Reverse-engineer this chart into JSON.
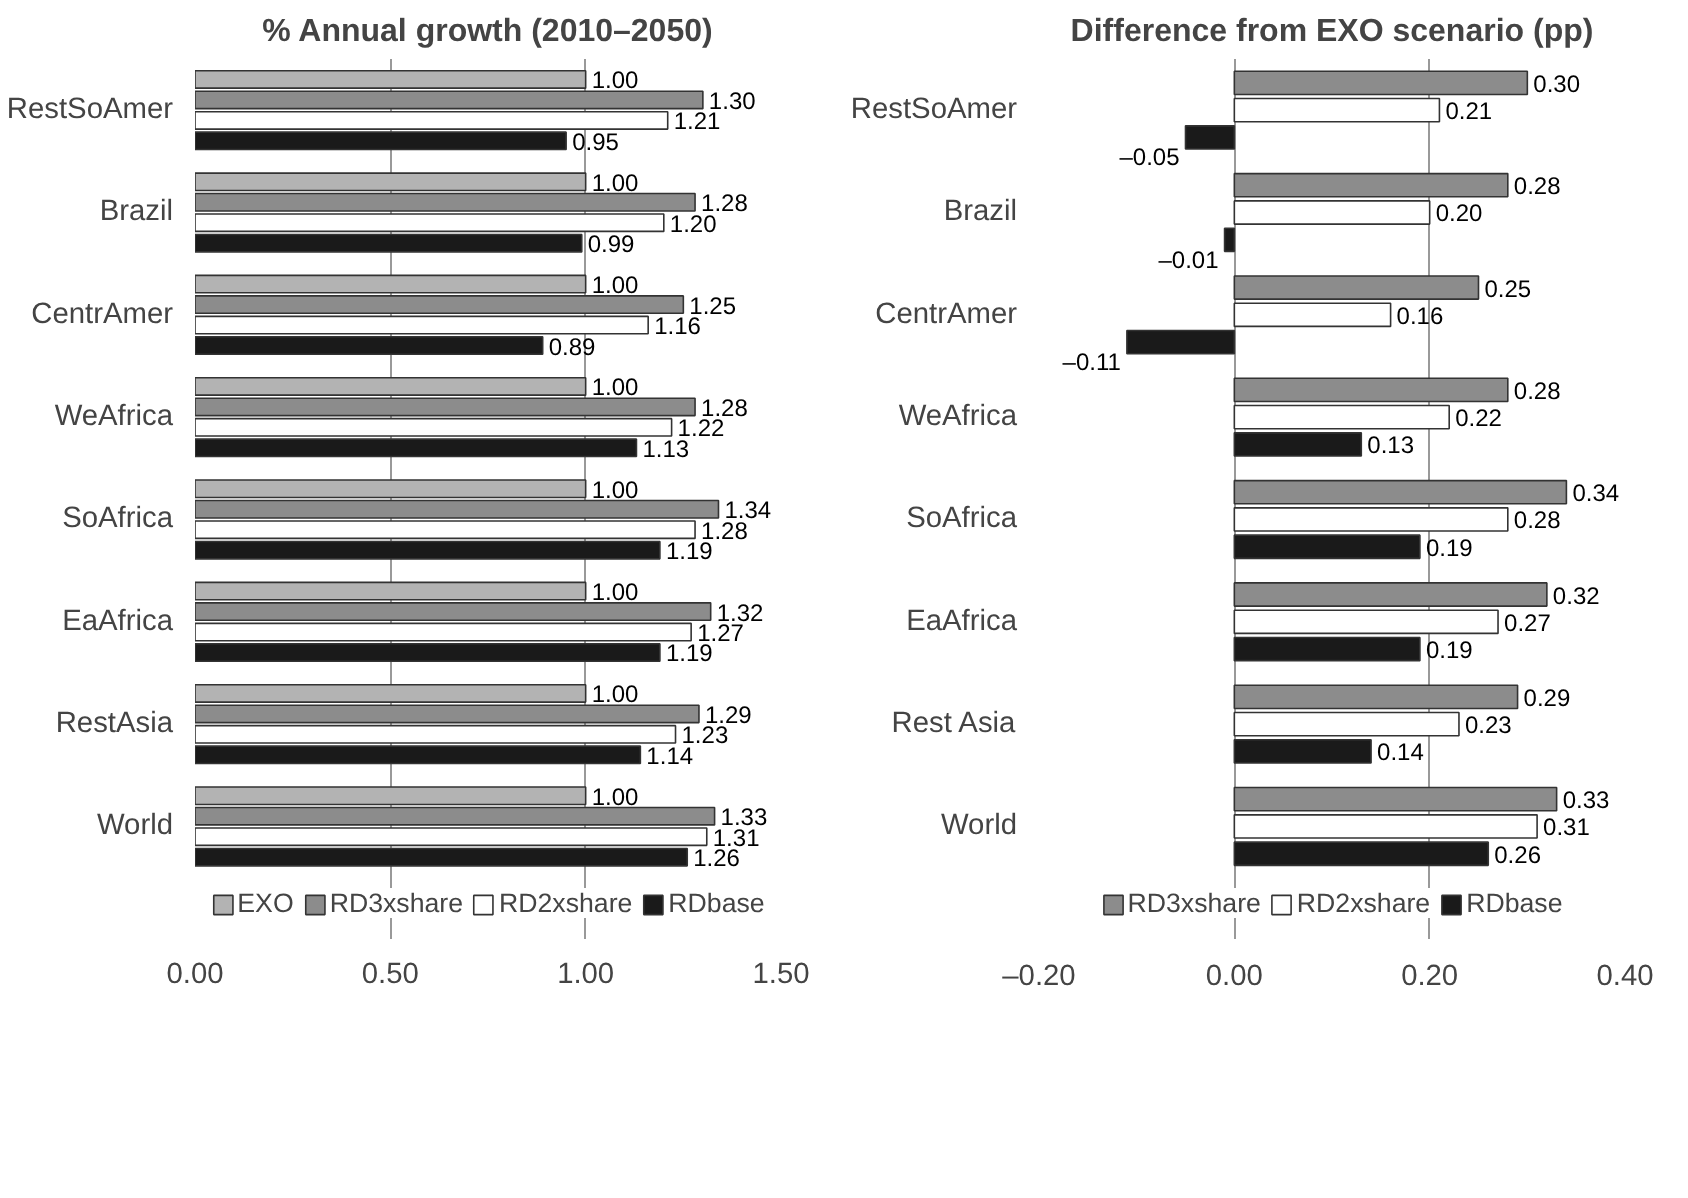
{
  "chart_data": [
    {
      "type": "bar",
      "orientation": "horizontal",
      "title": "% Annual growth (2010–2050)",
      "categories": [
        "RestSoAmer",
        "Brazil",
        "CentrAmer",
        "WeAfrica",
        "SoAfrica",
        "EaAfrica",
        "RestAsia",
        "World"
      ],
      "xlim": [
        0,
        1.5
      ],
      "xticks": [
        {
          "value": 0,
          "label": "0.00"
        },
        {
          "value": 0.5,
          "label": "0.50"
        },
        {
          "value": 1,
          "label": "1.00"
        },
        {
          "value": 1.5,
          "label": "1.50"
        }
      ],
      "grid": "x",
      "legend": "bottom",
      "series": [
        {
          "name": "EXO",
          "color": "#b3b3b3",
          "values": [
            1.0,
            1.0,
            1.0,
            1.0,
            1.0,
            1.0,
            1.0,
            1.0
          ],
          "value_labels": [
            "1.00",
            "1.00",
            "1.00",
            "1.00",
            "1.00",
            "1.00",
            "1.00",
            "1.00"
          ]
        },
        {
          "name": "RD3xshare",
          "color": "#8c8c8c",
          "values": [
            1.3,
            1.28,
            1.25,
            1.28,
            1.34,
            1.32,
            1.29,
            1.33
          ],
          "value_labels": [
            "1.30",
            "1.28",
            "1.25",
            "1.28",
            "1.34",
            "1.32",
            "1.29",
            "1.33"
          ]
        },
        {
          "name": "RD2xshare",
          "color": "#ffffff",
          "values": [
            1.21,
            1.2,
            1.16,
            1.22,
            1.28,
            1.27,
            1.23,
            1.31
          ],
          "value_labels": [
            "1.21",
            "1.20",
            "1.16",
            "1.22",
            "1.28",
            "1.27",
            "1.23",
            "1.31"
          ]
        },
        {
          "name": "RDbase",
          "color": "#1a1a1a",
          "values": [
            0.95,
            0.99,
            0.89,
            1.13,
            1.19,
            1.19,
            1.14,
            1.26
          ],
          "value_labels": [
            "0.95",
            "0.99",
            "0.89",
            "1.13",
            "1.19",
            "1.19",
            "1.14",
            "1.26"
          ]
        }
      ]
    },
    {
      "type": "bar",
      "orientation": "horizontal",
      "title": "Difference from EXO scenario (pp)",
      "categories": [
        "RestSoAmer",
        "Brazil",
        "CentrAmer",
        "WeAfrica",
        "SoAfrica",
        "EaAfrica",
        "Rest Asia",
        "World"
      ],
      "xlim": [
        -0.2,
        0.4
      ],
      "xticks": [
        {
          "value": -0.2,
          "label": "–0.20"
        },
        {
          "value": 0,
          "label": "0.00"
        },
        {
          "value": 0.2,
          "label": "0.20"
        },
        {
          "value": 0.4,
          "label": "0.40"
        }
      ],
      "grid": "x",
      "legend": "bottom",
      "series": [
        {
          "name": "RD3xshare",
          "color": "#8c8c8c",
          "values": [
            0.3,
            0.28,
            0.25,
            0.28,
            0.34,
            0.32,
            0.29,
            0.33
          ],
          "value_labels": [
            "0.30",
            "0.28",
            "0.25",
            "0.28",
            "0.34",
            "0.32",
            "0.29",
            "0.33"
          ]
        },
        {
          "name": "RD2xshare",
          "color": "#ffffff",
          "values": [
            0.21,
            0.2,
            0.16,
            0.22,
            0.28,
            0.27,
            0.23,
            0.31
          ],
          "value_labels": [
            "0.21",
            "0.20",
            "0.16",
            "0.22",
            "0.28",
            "0.27",
            "0.23",
            "0.31"
          ]
        },
        {
          "name": "RDbase",
          "color": "#1a1a1a",
          "values": [
            -0.05,
            -0.01,
            -0.11,
            0.13,
            0.19,
            0.19,
            0.14,
            0.26
          ],
          "value_labels": [
            "–0.05",
            "–0.01",
            "–0.11",
            "0.13",
            "0.19",
            "0.19",
            "0.14",
            "0.26"
          ]
        }
      ]
    }
  ]
}
